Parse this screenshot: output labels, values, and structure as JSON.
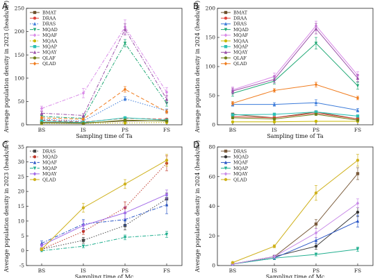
{
  "chart_data": [
    {
      "panel": "A",
      "type": "line",
      "categories": [
        "BS",
        "IS",
        "PS",
        "FS"
      ],
      "xlabel": "Sampling time of Ta",
      "ylabel": "Average population density in 2023 (heads/m²)",
      "ylim": [
        0,
        250
      ],
      "yticks": [
        0,
        50,
        100,
        150,
        200,
        250
      ],
      "legend_position": "top-left",
      "grid": false,
      "series": [
        {
          "name": "BMAT",
          "color": "#6b4f2a",
          "dash": "solid",
          "values": [
            5,
            4,
            8,
            9
          ],
          "errors": [
            1,
            1,
            2,
            2
          ]
        },
        {
          "name": "DRAA",
          "color": "#e0443c",
          "dash": "dash",
          "values": [
            10,
            6,
            14,
            12
          ],
          "errors": [
            2,
            1,
            2,
            2
          ]
        },
        {
          "name": "DRAS",
          "color": "#3a7ad9",
          "dash": "dot",
          "values": [
            12,
            8,
            56,
            30
          ],
          "errors": [
            2,
            2,
            4,
            4
          ]
        },
        {
          "name": "MQAD",
          "color": "#1fa874",
          "dash": "dashdot",
          "values": [
            18,
            14,
            175,
            46
          ],
          "errors": [
            3,
            3,
            8,
            6
          ]
        },
        {
          "name": "MQAF",
          "color": "#d98ae8",
          "dash": "dashdot",
          "values": [
            35,
            68,
            210,
            70
          ],
          "errors": [
            5,
            10,
            15,
            10
          ]
        },
        {
          "name": "MQAA",
          "color": "#c8b800",
          "dash": "dot",
          "values": [
            3,
            3,
            4,
            5
          ],
          "errors": [
            1,
            1,
            1,
            1
          ]
        },
        {
          "name": "MQAP",
          "color": "#2cc0b4",
          "dash": "solid",
          "values": [
            8,
            5,
            15,
            10
          ],
          "errors": [
            2,
            1,
            2,
            2
          ]
        },
        {
          "name": "MQAY",
          "color": "#9a4fa8",
          "dash": "dashdot",
          "values": [
            25,
            20,
            205,
            55
          ],
          "errors": [
            4,
            4,
            12,
            8
          ]
        },
        {
          "name": "QLAF",
          "color": "#6f7f1a",
          "dash": "solid",
          "values": [
            4,
            3,
            10,
            8
          ],
          "errors": [
            1,
            1,
            2,
            1
          ]
        },
        {
          "name": "QLAD",
          "color": "#f07c1e",
          "dash": "dash",
          "values": [
            15,
            12,
            76,
            28
          ],
          "errors": [
            3,
            2,
            6,
            4
          ]
        }
      ]
    },
    {
      "panel": "B",
      "type": "line",
      "categories": [
        "BS",
        "IS",
        "PS",
        "FS"
      ],
      "xlabel": "Sampling time of Ta",
      "ylabel": "Average population density in 2024 (heads/m²)",
      "ylim": [
        0,
        200
      ],
      "yticks": [
        0,
        50,
        100,
        150,
        200
      ],
      "legend_position": "top-left",
      "grid": false,
      "series": [
        {
          "name": "BMAT",
          "color": "#6b4f2a",
          "dash": "solid",
          "values": [
            18,
            12,
            22,
            10
          ],
          "errors": [
            2,
            2,
            2,
            2
          ]
        },
        {
          "name": "DRAA",
          "color": "#e0443c",
          "dash": "solid",
          "values": [
            14,
            12,
            20,
            10
          ],
          "errors": [
            2,
            2,
            2,
            2
          ]
        },
        {
          "name": "DRAS",
          "color": "#3a7ad9",
          "dash": "solid",
          "values": [
            35,
            35,
            38,
            25
          ],
          "errors": [
            3,
            3,
            5,
            3
          ]
        },
        {
          "name": "MQAD",
          "color": "#1fa874",
          "dash": "solid",
          "values": [
            54,
            75,
            140,
            67
          ],
          "errors": [
            5,
            5,
            10,
            6
          ]
        },
        {
          "name": "MQAF",
          "color": "#d98ae8",
          "dash": "solid",
          "values": [
            60,
            83,
            170,
            85
          ],
          "errors": [
            5,
            6,
            8,
            6
          ]
        },
        {
          "name": "MQAA",
          "color": "#c8b800",
          "dash": "solid",
          "values": [
            5,
            5,
            6,
            6
          ],
          "errors": [
            1,
            1,
            1,
            1
          ]
        },
        {
          "name": "MQAP",
          "color": "#2cc0b4",
          "dash": "solid",
          "values": [
            17,
            18,
            22,
            15
          ],
          "errors": [
            2,
            2,
            2,
            2
          ]
        },
        {
          "name": "MQAY",
          "color": "#9a4fa8",
          "dash": "solid",
          "values": [
            58,
            78,
            165,
            80
          ],
          "errors": [
            5,
            6,
            9,
            6
          ]
        },
        {
          "name": "QLAF",
          "color": "#6f7f1a",
          "dash": "solid",
          "values": [
            12,
            10,
            18,
            8
          ],
          "errors": [
            2,
            2,
            2,
            2
          ]
        },
        {
          "name": "QLAD",
          "color": "#f07c1e",
          "dash": "solid",
          "values": [
            37,
            59,
            69,
            46
          ],
          "errors": [
            3,
            3,
            4,
            3
          ]
        }
      ]
    },
    {
      "panel": "C",
      "type": "line",
      "categories": [
        "BS",
        "IS",
        "PS",
        "FS"
      ],
      "xlabel": "Sampling time of Mc",
      "ylabel": "Average population density in 2023 (heads/m²)",
      "ylim": [
        -5,
        35
      ],
      "yticks": [
        -5,
        0,
        5,
        10,
        15,
        20,
        25,
        30,
        35
      ],
      "legend_position": "top-left",
      "grid": false,
      "series": [
        {
          "name": "DRAS",
          "color": "#444444",
          "dash": "dot",
          "values": [
            0.5,
            3.5,
            8.5,
            17.5
          ],
          "errors": [
            0.5,
            1,
            1.5,
            2
          ]
        },
        {
          "name": "MQAD",
          "color": "#c0392b",
          "dash": "dot",
          "values": [
            0.5,
            6.5,
            14.5,
            29.5
          ],
          "errors": [
            0.5,
            1,
            2,
            2.5
          ]
        },
        {
          "name": "MQAF",
          "color": "#2a56c6",
          "dash": "dashdot",
          "values": [
            2.5,
            9,
            10.5,
            15.5
          ],
          "errors": [
            0.8,
            1.5,
            2,
            3
          ]
        },
        {
          "name": "MQAP",
          "color": "#1fae8e",
          "dash": "dashdot",
          "values": [
            0,
            1.5,
            4.5,
            5.5
          ],
          "errors": [
            0.3,
            0.5,
            0.8,
            1
          ]
        },
        {
          "name": "MQAY",
          "color": "#a26ae8",
          "dash": "solid",
          "values": [
            1.8,
            8.5,
            12.8,
            19
          ],
          "errors": [
            0.5,
            1.5,
            2,
            1.5
          ]
        },
        {
          "name": "QLAD",
          "color": "#cfb11c",
          "dash": "solid",
          "values": [
            0.5,
            14.5,
            22.5,
            30.5
          ],
          "errors": [
            0.5,
            1.5,
            1.5,
            2
          ]
        }
      ]
    },
    {
      "panel": "D",
      "type": "line",
      "categories": [
        "BS",
        "IS",
        "PS",
        "FS"
      ],
      "xlabel": "Sampling time of Mc",
      "ylabel": "Average population density in 2024 (heads/m²)",
      "ylim": [
        0,
        80
      ],
      "yticks": [
        0,
        20,
        40,
        60,
        80
      ],
      "legend_position": "top-left",
      "grid": false,
      "series": [
        {
          "name": "DRAS",
          "color": "#7a5a3a",
          "dash": "solid",
          "values": [
            1,
            6,
            28,
            62
          ],
          "errors": [
            0.5,
            1,
            3,
            4
          ]
        },
        {
          "name": "MQAD",
          "color": "#333333",
          "dash": "solid",
          "values": [
            1,
            6,
            13,
            36
          ],
          "errors": [
            0.5,
            1,
            2,
            3
          ]
        },
        {
          "name": "MQAF",
          "color": "#2a56c6",
          "dash": "solid",
          "values": [
            1,
            5,
            17,
            30
          ],
          "errors": [
            0.5,
            1,
            2,
            4
          ]
        },
        {
          "name": "MQAP",
          "color": "#1fae8e",
          "dash": "solid",
          "values": [
            1,
            5,
            7.5,
            11
          ],
          "errors": [
            0.5,
            1,
            1,
            1.5
          ]
        },
        {
          "name": "MQAY",
          "color": "#c98ce8",
          "dash": "solid",
          "values": [
            1,
            6,
            22,
            42
          ],
          "errors": [
            0.5,
            1,
            3,
            3
          ]
        },
        {
          "name": "QLAD",
          "color": "#cfb11c",
          "dash": "solid",
          "values": [
            2,
            13,
            49,
            71
          ],
          "errors": [
            0.5,
            1,
            5,
            4
          ]
        }
      ]
    }
  ]
}
